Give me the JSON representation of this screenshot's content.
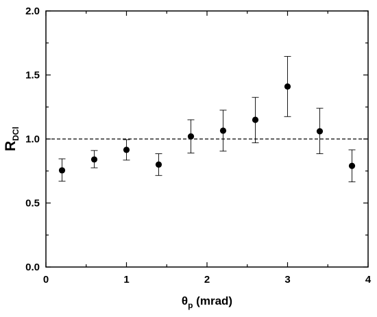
{
  "chart_data": {
    "type": "scatter",
    "xlabel": {
      "symbol": "θ",
      "subscript": "p",
      "suffix": " (mrad)"
    },
    "ylabel": {
      "symbol": "R",
      "subscript": "DCl"
    },
    "xlim": [
      0,
      4
    ],
    "ylim": [
      0,
      2.0
    ],
    "x_ticks": [
      0,
      1,
      2,
      3,
      4
    ],
    "x_tick_labels": [
      "0",
      "1",
      "2",
      "3",
      "4"
    ],
    "y_ticks": [
      0,
      0.5,
      1.0,
      1.5,
      2.0
    ],
    "y_tick_labels": [
      "0.0",
      "0.5",
      "1.0",
      "1.5",
      "2.0"
    ],
    "grid": false,
    "reference_line": {
      "y": 1.0,
      "style": "dashed"
    },
    "series": [
      {
        "x": [
          0.2,
          0.6,
          1.0,
          1.4,
          1.8,
          2.2,
          2.6,
          3.0,
          3.4,
          3.8
        ],
        "y": [
          0.755,
          0.84,
          0.915,
          0.8,
          1.02,
          1.065,
          1.15,
          1.41,
          1.06,
          0.79
        ],
        "err_low": [
          0.67,
          0.775,
          0.835,
          0.715,
          0.89,
          0.905,
          0.97,
          1.175,
          0.885,
          0.665
        ],
        "err_high": [
          0.845,
          0.91,
          0.995,
          0.885,
          1.15,
          1.225,
          1.325,
          1.645,
          1.24,
          0.915
        ]
      }
    ]
  }
}
